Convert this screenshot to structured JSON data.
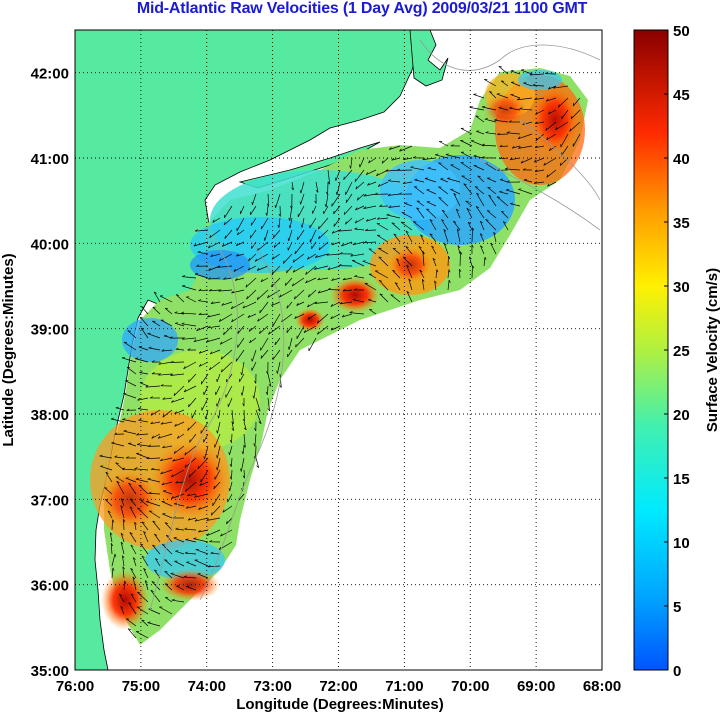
{
  "title": "Mid-Atlantic Raw Velocities (1 Day Avg) 2009/03/21 1100 GMT",
  "map": {
    "xlabel": "Longitude (Degrees:Minutes)",
    "ylabel": "Latitude (Degrees:Minutes)",
    "x_ticks": [
      "76:00",
      "75:00",
      "74:00",
      "73:00",
      "72:00",
      "71:00",
      "70:00",
      "69:00",
      "68:00"
    ],
    "y_ticks": [
      "42:00",
      "41:00",
      "40:00",
      "39:00",
      "38:00",
      "37:00",
      "36:00",
      "35:00"
    ],
    "lon_range": [
      -76,
      -68
    ],
    "lat_range": [
      35,
      42.5
    ],
    "land_color": "#55eaa0",
    "grid": "dotted"
  },
  "colorbar": {
    "label": "Surface Velocity (cm/s)",
    "ticks": [
      "50",
      "45",
      "40",
      "35",
      "30",
      "25",
      "20",
      "15",
      "10",
      "5",
      "0"
    ],
    "range": [
      0,
      50
    ],
    "colormap": "jet"
  }
}
